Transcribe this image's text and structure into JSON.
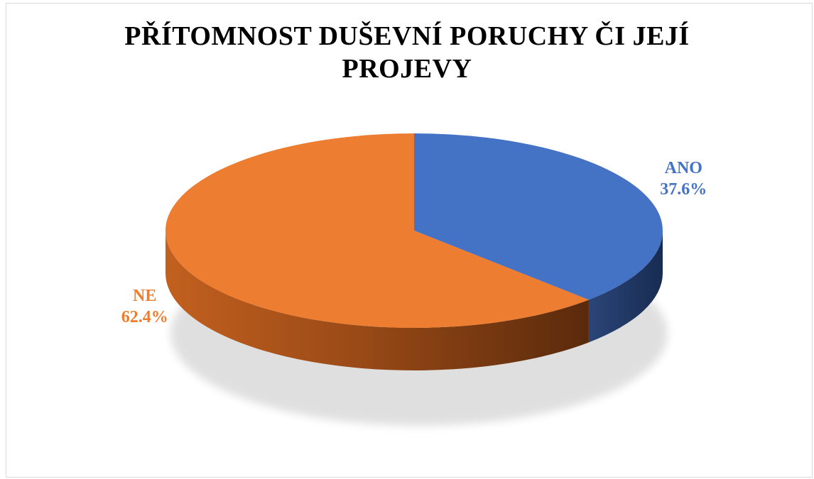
{
  "chart_data": {
    "type": "pie",
    "title_lines": [
      "PŘÍTOMNOST DUŠEVNÍ PORUCHY ČI JEJÍ",
      "PROJEVY"
    ],
    "slices": [
      {
        "label": "ANO",
        "value": 37.6,
        "value_label": "37.6%",
        "color": "#4472c4"
      },
      {
        "label": "NE",
        "value": 62.4,
        "value_label": "62.4%",
        "color": "#ed7d31"
      }
    ],
    "legend": "none",
    "data_labels": "outside"
  }
}
